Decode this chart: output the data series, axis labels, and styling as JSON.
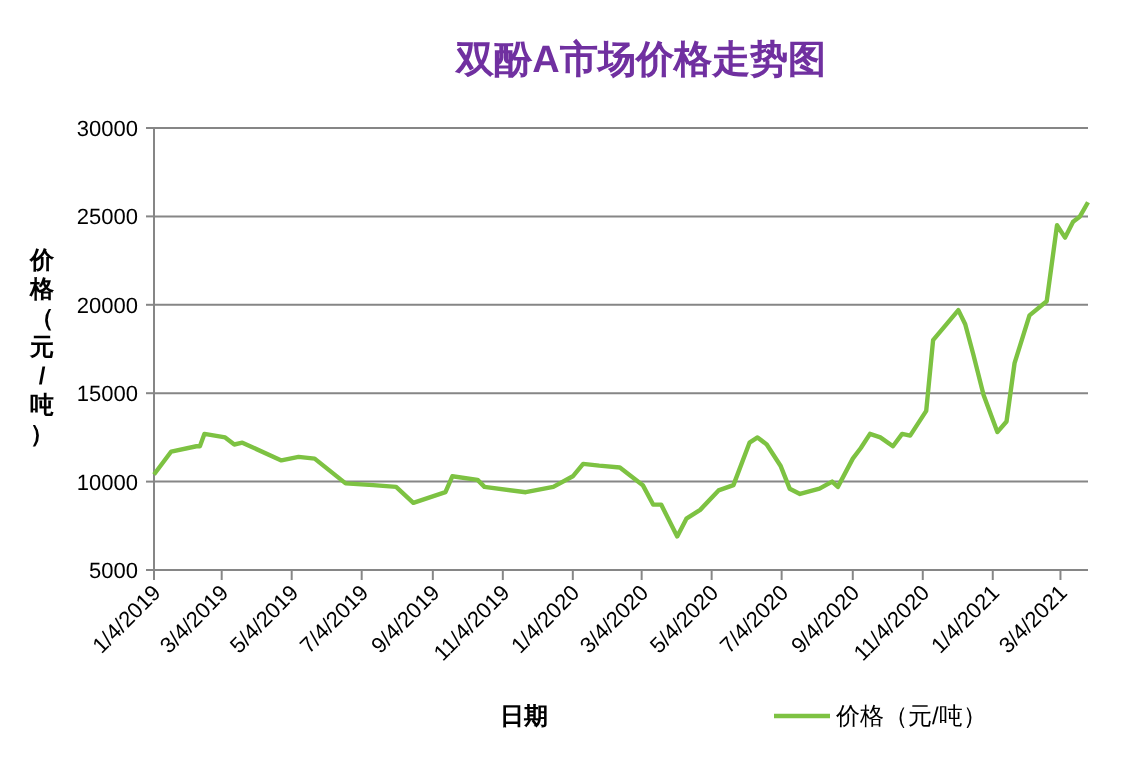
{
  "chart_data": {
    "type": "line",
    "title": "双酚A市场价格走势图",
    "xlabel": "日期",
    "ylabel": "价格（元/吨）",
    "x": [
      "2019-01-04",
      "2019-01-19",
      "2019-02-10",
      "2019-02-13",
      "2019-02-17",
      "2019-03-07",
      "2019-03-15",
      "2019-03-22",
      "2019-04-25",
      "2019-05-10",
      "2019-05-24",
      "2019-06-20",
      "2019-07-14",
      "2019-08-03",
      "2019-08-18",
      "2019-09-15",
      "2019-09-21",
      "2019-10-13",
      "2019-10-19",
      "2019-11-24",
      "2019-12-18",
      "2020-01-04",
      "2020-01-13",
      "2020-01-27",
      "2020-02-14",
      "2020-03-05",
      "2020-03-14",
      "2020-03-21",
      "2020-04-04",
      "2020-04-12",
      "2020-04-24",
      "2020-05-10",
      "2020-05-23",
      "2020-06-06",
      "2020-06-13",
      "2020-06-21",
      "2020-07-03",
      "2020-07-11",
      "2020-07-20",
      "2020-08-06",
      "2020-08-17",
      "2020-08-22",
      "2020-09-04",
      "2020-09-11",
      "2020-09-19",
      "2020-09-28",
      "2020-10-09",
      "2020-10-17",
      "2020-10-24",
      "2020-11-07",
      "2020-11-13",
      "2020-12-05",
      "2020-12-11",
      "2020-12-18",
      "2020-12-27",
      "2021-01-08",
      "2021-01-16",
      "2021-01-23",
      "2021-02-05",
      "2021-02-20",
      "2021-03-01",
      "2021-03-08",
      "2021-03-15",
      "2021-03-21",
      "2021-03-28"
    ],
    "series": [
      {
        "name": "价格（元/吨）",
        "color": "#7dc242",
        "values": [
          10400,
          11700,
          12000,
          12000,
          12700,
          12500,
          12100,
          12200,
          11200,
          11400,
          11300,
          9900,
          9800,
          9700,
          8800,
          9400,
          10300,
          10100,
          9700,
          9400,
          9700,
          10300,
          11000,
          10900,
          10800,
          9800,
          8700,
          8700,
          6900,
          7900,
          8400,
          9500,
          9800,
          12200,
          12500,
          12100,
          10900,
          9600,
          9300,
          9600,
          10000,
          9700,
          11300,
          11900,
          12700,
          12500,
          12000,
          12700,
          12600,
          14000,
          18000,
          19700,
          18900,
          17200,
          14900,
          12800,
          13400,
          16700,
          19400,
          20200,
          24500,
          23800,
          24700,
          25000,
          25800
        ]
      }
    ],
    "xlim": [
      "2019-01-04",
      "2021-03-28"
    ],
    "xticks": [
      {
        "value": "2019-01-04",
        "label": "1/4/2019"
      },
      {
        "value": "2019-03-04",
        "label": "3/4/2019"
      },
      {
        "value": "2019-05-04",
        "label": "5/4/2019"
      },
      {
        "value": "2019-07-04",
        "label": "7/4/2019"
      },
      {
        "value": "2019-09-04",
        "label": "9/4/2019"
      },
      {
        "value": "2019-11-04",
        "label": "11/4/2019"
      },
      {
        "value": "2020-01-04",
        "label": "1/4/2020"
      },
      {
        "value": "2020-03-04",
        "label": "3/4/2020"
      },
      {
        "value": "2020-05-04",
        "label": "5/4/2020"
      },
      {
        "value": "2020-07-04",
        "label": "7/4/2020"
      },
      {
        "value": "2020-09-04",
        "label": "9/4/2020"
      },
      {
        "value": "2020-11-04",
        "label": "11/4/2020"
      },
      {
        "value": "2021-01-04",
        "label": "1/4/2021"
      },
      {
        "value": "2021-03-04",
        "label": "3/4/2021"
      }
    ],
    "ylim": [
      5000,
      30000
    ],
    "yticks": [
      5000,
      10000,
      15000,
      20000,
      25000,
      30000
    ],
    "grid": "y",
    "legend": "bottom",
    "line_style": "solid"
  }
}
